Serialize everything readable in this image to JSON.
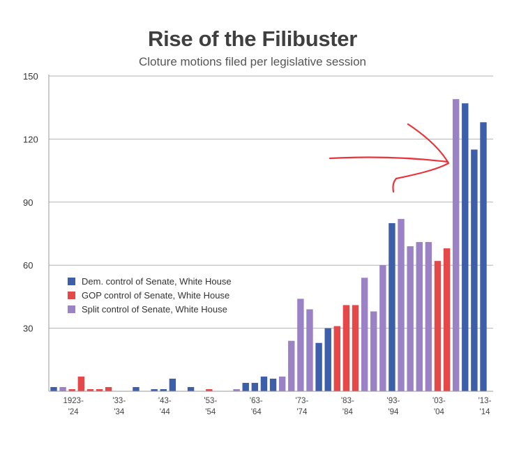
{
  "chart_data": {
    "type": "bar",
    "title": "Rise of the Filibuster",
    "subtitle": "Cloture motions filed per legislative session",
    "xlabel": "",
    "ylabel": "",
    "ylim": [
      0,
      150
    ],
    "yticks": [
      30,
      60,
      90,
      120,
      150
    ],
    "colors": {
      "D": "#3d5ea8",
      "R": "#e54848",
      "S": "#9b82c4"
    },
    "legend": [
      {
        "key": "D",
        "label": "Dem. control of Senate, White House"
      },
      {
        "key": "R",
        "label": "GOP control of Senate, White House"
      },
      {
        "key": "S",
        "label": "Split control of Senate, White House"
      }
    ],
    "legend_position": "middle-left",
    "x_tick_labels": [
      {
        "index": 2,
        "line1": "1923-",
        "line2": "'24"
      },
      {
        "index": 7,
        "line1": "'33-",
        "line2": "'34"
      },
      {
        "index": 12,
        "line1": "'43-",
        "line2": "'44"
      },
      {
        "index": 17,
        "line1": "'53-",
        "line2": "'54"
      },
      {
        "index": 22,
        "line1": "'63-",
        "line2": "'64"
      },
      {
        "index": 27,
        "line1": "'73-",
        "line2": "'74"
      },
      {
        "index": 32,
        "line1": "'83-",
        "line2": "'84"
      },
      {
        "index": 37,
        "line1": "'93-",
        "line2": "'94"
      },
      {
        "index": 42,
        "line1": "'03-",
        "line2": "'04"
      },
      {
        "index": 47,
        "line1": "'13-",
        "line2": "'14"
      }
    ],
    "values": [
      2,
      2,
      1,
      7,
      1,
      1,
      2,
      0,
      0,
      2,
      0,
      1,
      1,
      6,
      0,
      2,
      0,
      1,
      0,
      0,
      1,
      4,
      4,
      7,
      6,
      7,
      24,
      44,
      39,
      23,
      30,
      31,
      41,
      41,
      54,
      38,
      60,
      80,
      82,
      69,
      71,
      71,
      62,
      68,
      139,
      137,
      115,
      128
    ],
    "control": [
      "D",
      "S",
      "R",
      "R",
      "R",
      "R",
      "R",
      "D",
      "D",
      "D",
      "D",
      "D",
      "D",
      "D",
      "S",
      "D",
      "S",
      "R",
      "R",
      "R",
      "S",
      "D",
      "D",
      "D",
      "D",
      "S",
      "S",
      "S",
      "S",
      "D",
      "D",
      "R",
      "R",
      "R",
      "S",
      "S",
      "S",
      "D",
      "S",
      "S",
      "S",
      "S",
      "R",
      "R",
      "S",
      "D",
      "D",
      "D"
    ],
    "annotations": [
      {
        "type": "hand-drawn arrow",
        "color": "#e8343a",
        "points_to_index": 44
      }
    ]
  }
}
